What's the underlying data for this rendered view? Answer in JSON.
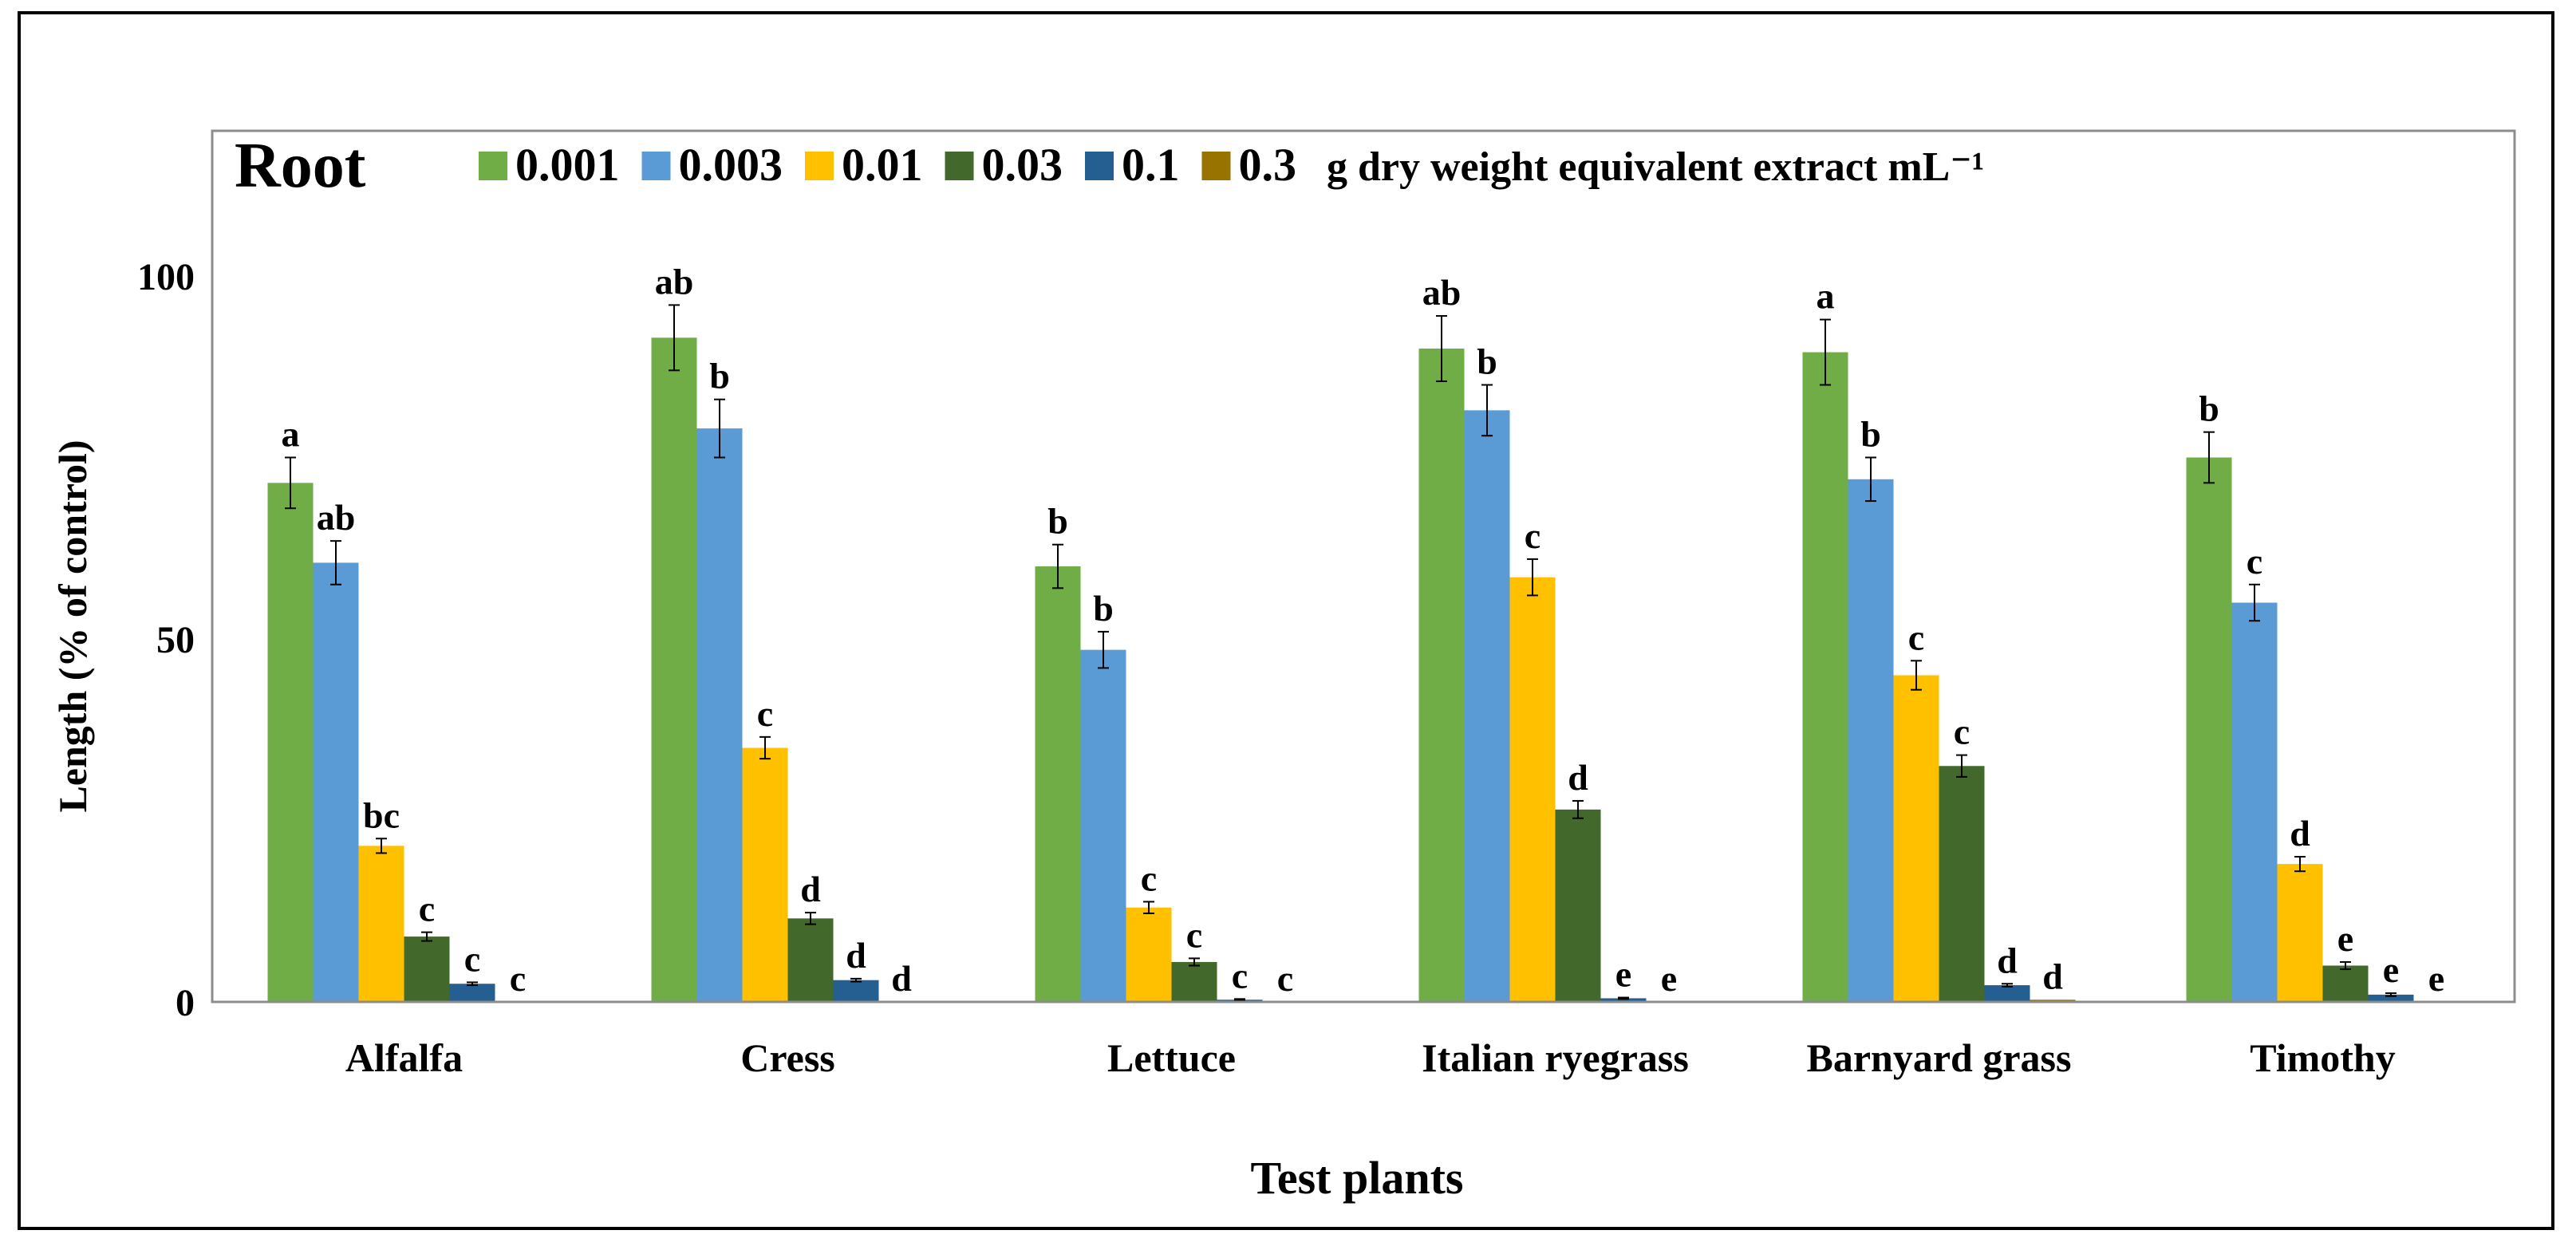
{
  "chart_data": {
    "type": "bar",
    "title": "Root",
    "legend_suffix": "g dry weight equivalent extract mL⁻¹",
    "legend_position": "top",
    "xlabel": "Test plants",
    "ylabel": "Length (% of control)",
    "ylim": [
      0,
      120
    ],
    "yticks": [
      0,
      50,
      100
    ],
    "grid": false,
    "categories": [
      "Alfalfa",
      "Cress",
      "Lettuce",
      "Italian ryegrass",
      "Barnyard grass",
      "Timothy"
    ],
    "series": [
      {
        "name": "0.001",
        "color": "#70AD47",
        "values": [
          71.5,
          91.5,
          60.0,
          90.0,
          89.5,
          75.0
        ],
        "errors": [
          3.5,
          4.5,
          3.0,
          4.5,
          4.5,
          3.5
        ],
        "letters": [
          "a",
          "ab",
          "b",
          "ab",
          "a",
          "b"
        ]
      },
      {
        "name": "0.003",
        "color": "#5B9BD5",
        "values": [
          60.5,
          79.0,
          48.5,
          81.5,
          72.0,
          55.0
        ],
        "errors": [
          3.0,
          4.0,
          2.5,
          3.5,
          3.0,
          2.5
        ],
        "letters": [
          "ab",
          "b",
          "b",
          "b",
          "b",
          "c"
        ]
      },
      {
        "name": "0.01",
        "color": "#FFC000",
        "values": [
          21.5,
          35.0,
          13.0,
          58.5,
          45.0,
          19.0
        ],
        "errors": [
          1.0,
          1.5,
          0.8,
          2.5,
          2.0,
          1.0
        ],
        "letters": [
          "bc",
          "c",
          "c",
          "c",
          "c",
          "d"
        ]
      },
      {
        "name": "0.03",
        "color": "#43682B",
        "values": [
          9.0,
          11.5,
          5.5,
          26.5,
          32.5,
          5.0
        ],
        "errors": [
          0.6,
          0.8,
          0.5,
          1.2,
          1.5,
          0.5
        ],
        "letters": [
          "c",
          "d",
          "c",
          "d",
          "c",
          "e"
        ]
      },
      {
        "name": "0.1",
        "color": "#255E91",
        "values": [
          2.5,
          3.0,
          0.3,
          0.5,
          2.3,
          1.0
        ],
        "errors": [
          0.2,
          0.2,
          0.1,
          0.1,
          0.2,
          0.2
        ],
        "letters": [
          "c",
          "d",
          "c",
          "e",
          "d",
          "e"
        ]
      },
      {
        "name": "0.3",
        "color": "#997300",
        "values": [
          0.0,
          0.0,
          0.0,
          0.0,
          0.3,
          0.0
        ],
        "errors": [
          0.0,
          0.0,
          0.0,
          0.0,
          0.0,
          0.0
        ],
        "letters": [
          "c",
          "d",
          "c",
          "e",
          "d",
          "e"
        ]
      }
    ]
  }
}
